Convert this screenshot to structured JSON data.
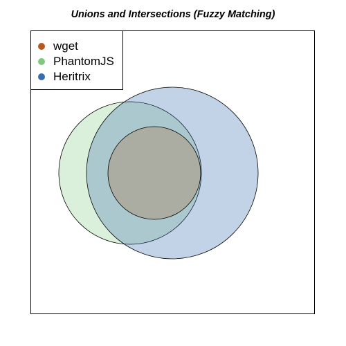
{
  "title": "Unions and Intersections (Fuzzy Matching)",
  "legend": {
    "position": "top-left",
    "items": [
      {
        "label": "wget",
        "color": "#b35a1f"
      },
      {
        "label": "PhantomJS",
        "color": "#7fc97f"
      },
      {
        "label": "Heritrix",
        "color": "#386cb0"
      }
    ]
  },
  "sets": [
    {
      "name": "wget",
      "fill": "#b35a1f",
      "fill_opacity": 0.25
    },
    {
      "name": "PhantomJS",
      "fill": "#7fc97f",
      "fill_opacity": 0.28
    },
    {
      "name": "Heritrix",
      "fill": "#386cb0",
      "fill_opacity": 0.3
    }
  ]
}
